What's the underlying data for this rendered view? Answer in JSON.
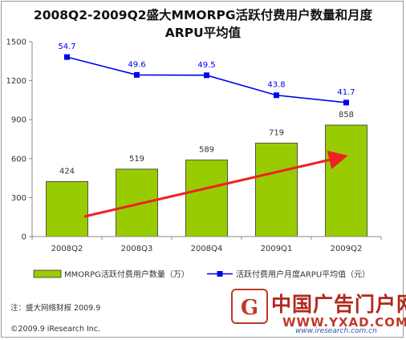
{
  "title": "2008Q2-2009Q2盛大MMORPG活跃付费用户数量和月度ARPU平均值",
  "chart_data": {
    "type": "bar",
    "categories": [
      "2008Q2",
      "2008Q3",
      "2008Q4",
      "2009Q1",
      "2009Q2"
    ],
    "series": [
      {
        "name": "MMORPG活跃付费用户数量（万）",
        "type": "bar",
        "values": [
          424,
          519,
          589,
          719,
          858
        ],
        "color": "#99cc00"
      },
      {
        "name": "活跃付费用户月度ARPU平均值（元）",
        "type": "line",
        "values": [
          54.7,
          49.6,
          49.5,
          43.8,
          41.7
        ],
        "color": "#0000ee"
      }
    ],
    "y_ticks": [
      "0",
      "300",
      "600",
      "900",
      "1200",
      "1500"
    ],
    "ylim": [
      0,
      1500
    ],
    "annotations": {
      "trend_arrow": "increasing",
      "trend_color": "#ee2222"
    },
    "grid": false,
    "legend_position": "bottom"
  },
  "footnote": "注：盛大网络财报 2009.9",
  "copyright": "©2009.9 iResearch Inc.",
  "watermark": {
    "cn": "中国广告门户网",
    "en": "WWW.YXAD.COM",
    "src": "www.iresearch.com.cn"
  }
}
